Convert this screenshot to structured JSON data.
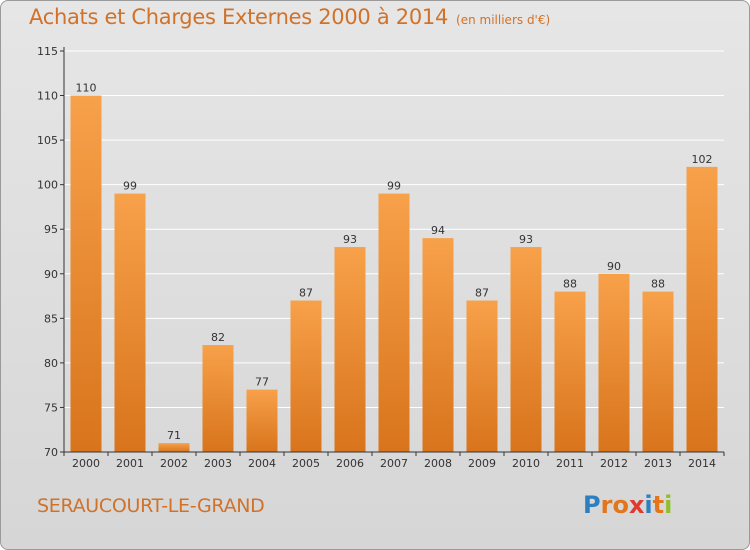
{
  "header": {
    "title": "Achats et Charges Externes 2000 à 2014",
    "subtitle": "(en milliers d'€)"
  },
  "footer": {
    "city": "SERAUCOURT-LE-GRAND",
    "logo": {
      "text": "Proxiti",
      "letter_colors": [
        "#2e7fc0",
        "#e3761b",
        "#e3761b",
        "#e03a2e",
        "#2e7fc0",
        "#e3761b",
        "#8fbf2a"
      ]
    }
  },
  "colors": {
    "bar_light": "#f7a14a",
    "bar_dark": "#d8741c",
    "axis": "#333333",
    "grid": "#ffffff"
  },
  "chart_data": {
    "type": "bar",
    "title": "Achats et Charges Externes 2000 à 2014",
    "subtitle": "(en milliers d'€)",
    "categories": [
      "2000",
      "2001",
      "2002",
      "2003",
      "2004",
      "2005",
      "2006",
      "2007",
      "2008",
      "2009",
      "2010",
      "2011",
      "2012",
      "2013",
      "2014"
    ],
    "values": [
      110,
      99,
      71,
      82,
      77,
      87,
      93,
      99,
      94,
      87,
      93,
      88,
      90,
      88,
      102
    ],
    "ylim": [
      70,
      115
    ],
    "yticks": [
      70,
      75,
      80,
      85,
      90,
      95,
      100,
      105,
      110,
      115
    ],
    "grid": true,
    "data_labels": true
  }
}
